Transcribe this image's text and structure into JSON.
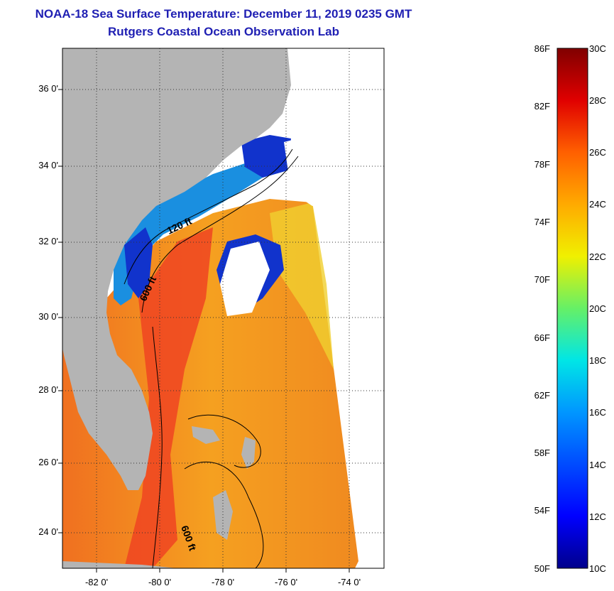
{
  "header": {
    "title": "NOAA-18 Sea Surface Temperature:  December 11, 2019 0235 GMT",
    "subtitle": "Rutgers Coastal Ocean Observation Lab"
  },
  "map": {
    "lat_labels": [
      "36 0'",
      "34 0'",
      "32 0'",
      "30 0'",
      "28 0'",
      "26 0'",
      "24 0'"
    ],
    "lon_labels": [
      "-82 0'",
      "-80 0'",
      "-78 0'",
      "-76 0'",
      "-74 0'"
    ],
    "isobath_labels": [
      "120 ft",
      "600 ft",
      "600 ft"
    ],
    "colors": {
      "land": "#b4b4b4",
      "cloud": "#ffffff",
      "warm": "#ee4422",
      "cool": "#1133cc"
    }
  },
  "colorbar": {
    "f_labels": [
      "86F",
      "82F",
      "78F",
      "74F",
      "70F",
      "66F",
      "62F",
      "58F",
      "54F",
      "50F"
    ],
    "c_labels": [
      "30C",
      "28C",
      "26C",
      "24C",
      "22C",
      "20C",
      "18C",
      "16C",
      "14C",
      "12C",
      "10C"
    ]
  }
}
